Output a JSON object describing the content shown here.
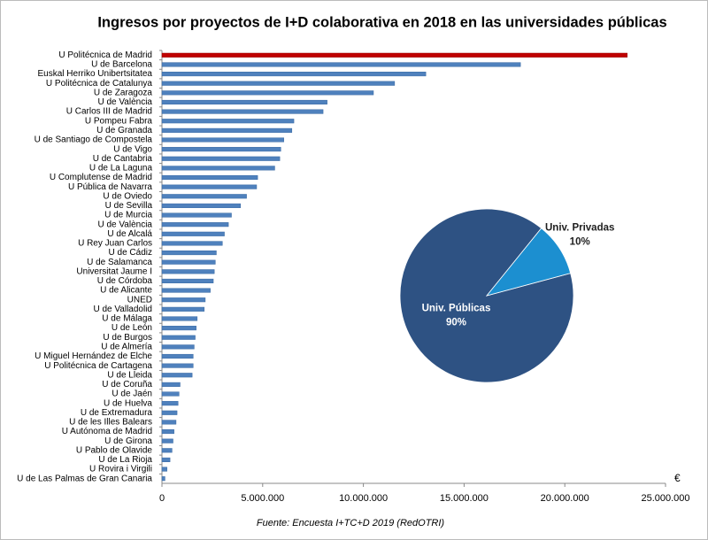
{
  "chart_data": [
    {
      "type": "bar",
      "orientation": "horizontal",
      "title": "Ingresos por proyectos de I+D colaborativa en 2018 en las universidades públicas",
      "categories": [
        "U Politécnica de Madrid",
        "U de Barcelona",
        "Euskal Herriko Unibertsitatea",
        "U Politécnica de Catalunya",
        "U de Zaragoza",
        "U  de València",
        "U Carlos III de Madrid",
        "U Pompeu Fabra",
        "U de Granada",
        "U de Santiago de Compostela",
        "U de Vigo",
        "U de Cantabria",
        "U de La Laguna",
        "U Complutense de Madrid",
        "U Pública de Navarra",
        "U de Oviedo",
        "U de Sevilla",
        "U de Murcia",
        "U de València",
        "U de Alcalá",
        "U Rey Juan Carlos",
        "U de Cádiz",
        "U de Salamanca",
        "Universitat Jaume I",
        "U de Córdoba",
        "U de Alicante",
        "UNED",
        "U de Valladolid",
        "U de Málaga",
        "U de León",
        "U de Burgos",
        "U de Almería",
        "U Miguel Hernández de Elche",
        "U Politécnica de Cartagena",
        "U de Lleida",
        "U de Coruña",
        "U de Jaén",
        "U de Huelva",
        "U de Extremadura",
        "U de les Illes Balears",
        "U Autónoma de Madrid",
        "U de Girona",
        "U Pablo de Olavide",
        "U de La Rioja",
        "U Rovira i Virgili",
        "U de Las Palmas de Gran Canaria"
      ],
      "values": [
        23100000,
        17800000,
        13100000,
        11550000,
        10500000,
        8200000,
        8000000,
        6550000,
        6450000,
        6050000,
        5900000,
        5850000,
        5600000,
        4750000,
        4700000,
        4200000,
        3900000,
        3450000,
        3300000,
        3100000,
        3000000,
        2700000,
        2650000,
        2600000,
        2550000,
        2400000,
        2150000,
        2100000,
        1750000,
        1700000,
        1650000,
        1600000,
        1550000,
        1550000,
        1500000,
        900000,
        850000,
        800000,
        750000,
        700000,
        600000,
        550000,
        500000,
        400000,
        250000,
        150000
      ],
      "color": "#4f81bd",
      "highlight_color": "#c00000",
      "highlight_index": 0,
      "xlim": [
        0,
        25000000
      ],
      "xticks": [
        0,
        {
          "value": 5000000,
          "label": "5.000.000"
        },
        {
          "value": 10000000,
          "label": "10.000.000"
        },
        {
          "value": 15000000,
          "label": "15.000.000"
        },
        {
          "value": 20000000,
          "label": "20.000.000"
        },
        {
          "value": 25000000,
          "label": "25.000.000"
        }
      ],
      "x_label": "€",
      "source": "Fuente:  Encuesta I+TC+D  2019 (RedOTRI)"
    },
    {
      "type": "pie",
      "categories": [
        "Univ. Públicas",
        "Univ. Privadas"
      ],
      "values": [
        90,
        10
      ],
      "value_labels": [
        "90%",
        "10%"
      ],
      "colors": [
        "#2e5283",
        "#1c8fd0"
      ]
    }
  ]
}
